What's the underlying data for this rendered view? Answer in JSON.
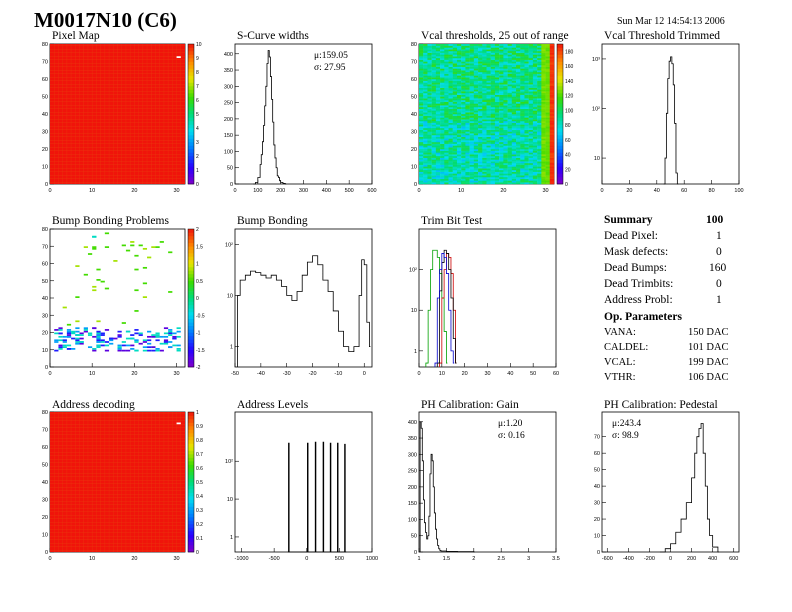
{
  "header": {
    "title": "M0017N10 (C6)",
    "date": "Sun Mar 12 14:54:13 2006"
  },
  "summary": {
    "heading": "Summary",
    "total": "100",
    "rows": [
      {
        "label": "Dead Pixel:",
        "value": "1"
      },
      {
        "label": "Mask defects:",
        "value": "0"
      },
      {
        "label": "Dead Bumps:",
        "value": "160"
      },
      {
        "label": "Dead Trimbits:",
        "value": "0"
      },
      {
        "label": "Address Probl:",
        "value": "1"
      }
    ],
    "op_heading": "Op. Parameters",
    "op_rows": [
      {
        "label": "VANA:",
        "value": "150 DAC"
      },
      {
        "label": "CALDEL:",
        "value": "101 DAC"
      },
      {
        "label": "VCAL:",
        "value": "199 DAC"
      },
      {
        "label": "VTHR:",
        "value": "106 DAC"
      }
    ]
  },
  "chart_data": [
    {
      "id": "pixel-map",
      "type": "heatmap",
      "title": "Pixel Map",
      "xlim": [
        0,
        32
      ],
      "ylim": [
        0,
        80
      ],
      "zlim": [
        0,
        10
      ],
      "xticks": [
        "0",
        "10",
        "20",
        "30"
      ],
      "yticks": [
        "0",
        "10",
        "20",
        "30",
        "40",
        "50",
        "60",
        "70",
        "80"
      ],
      "zticks": [
        "0",
        "1",
        "2",
        "3",
        "4",
        "5",
        "6",
        "7",
        "8",
        "9",
        "10"
      ],
      "fill_value": 10,
      "cells": [
        {
          "x": 30,
          "y": 72,
          "value": 0
        }
      ]
    },
    {
      "id": "scurve-widths",
      "type": "line",
      "title": "S-Curve widths",
      "xlim": [
        0,
        600
      ],
      "ylim": [
        0,
        430
      ],
      "xticks": [
        "0",
        "100",
        "200",
        "300",
        "400",
        "500",
        "600"
      ],
      "yticks": [
        "0",
        "50",
        "100",
        "150",
        "200",
        "250",
        "300",
        "350",
        "400"
      ],
      "stats": [
        "μ:159.05",
        "σ: 27.95"
      ],
      "x": [
        80,
        90,
        100,
        110,
        115,
        120,
        125,
        130,
        135,
        140,
        145,
        150,
        155,
        160,
        165,
        170,
        175,
        180,
        185,
        190,
        195,
        200,
        210,
        220
      ],
      "y": [
        0,
        5,
        20,
        60,
        90,
        130,
        180,
        240,
        300,
        370,
        410,
        390,
        330,
        260,
        190,
        120,
        80,
        50,
        25,
        20,
        10,
        5,
        2,
        0
      ]
    },
    {
      "id": "vcal-thresholds",
      "type": "heatmap",
      "title": "Vcal thresholds, 25 out of range",
      "xlim": [
        0,
        32
      ],
      "ylim": [
        0,
        80
      ],
      "zlim": [
        0,
        190
      ],
      "xticks": [
        "0",
        "10",
        "20",
        "30"
      ],
      "yticks": [
        "0",
        "10",
        "20",
        "30",
        "40",
        "50",
        "60",
        "70",
        "80"
      ],
      "zticks": [
        "0",
        "20",
        "40",
        "60",
        "80",
        "100",
        "120",
        "140",
        "160",
        "180"
      ],
      "base_value": 85,
      "bright_column_x": 29,
      "bright_column_value": 120,
      "right_band_value": 180
    },
    {
      "id": "vcal-threshold-trimmed",
      "type": "line",
      "title": "Vcal Threshold Trimmed",
      "yscale": "log",
      "xlim": [
        0,
        100
      ],
      "ylim": [
        3,
        2000
      ],
      "xticks": [
        "0",
        "20",
        "40",
        "60",
        "80",
        "100"
      ],
      "ytick_values": [
        10,
        100,
        1000
      ],
      "yticks": [
        "10",
        "10²",
        "10³"
      ],
      "x": [
        45,
        46,
        47,
        48,
        49,
        50,
        51,
        52,
        53,
        54,
        55
      ],
      "y": [
        3,
        10,
        80,
        400,
        900,
        1100,
        800,
        300,
        50,
        5,
        3
      ]
    },
    {
      "id": "bump-bonding-problems",
      "type": "scatter",
      "title": "Bump Bonding Problems",
      "xlim": [
        0,
        32
      ],
      "ylim": [
        0,
        80
      ],
      "zlim": [
        -2,
        2
      ],
      "xticks": [
        "0",
        "10",
        "20",
        "30"
      ],
      "yticks": [
        "0",
        "10",
        "20",
        "30",
        "40",
        "50",
        "60",
        "70",
        "80"
      ],
      "zticks": [
        "-2",
        "-1.5",
        "-1",
        "-0.5",
        "0",
        "0.5",
        "1",
        "1.5",
        "2"
      ],
      "clusters": [
        {
          "x0": 1,
          "x1": 31,
          "y0": 9,
          "y1": 23,
          "count": 170,
          "values": [
            -1.8,
            -1.4,
            -0.8,
            -0.3
          ]
        },
        {
          "x0": 2,
          "x1": 30,
          "y0": 24,
          "y1": 78,
          "count": 40,
          "values": [
            0.5,
            0.8
          ]
        },
        {
          "x0": 10,
          "x1": 12,
          "y0": 75,
          "y1": 77,
          "count": 3,
          "values": [
            -0.3
          ]
        }
      ]
    },
    {
      "id": "bump-bonding",
      "type": "line",
      "title": "Bump Bonding",
      "yscale": "log",
      "xlim": [
        -50,
        3
      ],
      "ylim": [
        0.4,
        200
      ],
      "xticks": [
        "-50",
        "-40",
        "-30",
        "-20",
        "-10",
        "0"
      ],
      "ytick_values": [
        1,
        10,
        100
      ],
      "yticks": [
        "1",
        "10",
        "10²"
      ],
      "x": [
        -49,
        -48,
        -46,
        -44,
        -42,
        -40,
        -38,
        -36,
        -34,
        -32,
        -30,
        -28,
        -26,
        -24,
        -22,
        -20,
        -18,
        -16,
        -14,
        -12,
        -10,
        -8,
        -6,
        -4,
        -2,
        -1,
        0,
        1,
        2
      ],
      "y": [
        10,
        20,
        25,
        30,
        28,
        25,
        22,
        25,
        20,
        15,
        10,
        8,
        12,
        25,
        45,
        60,
        40,
        20,
        12,
        5,
        2,
        1,
        0.8,
        1,
        10,
        50,
        40,
        3,
        1
      ]
    },
    {
      "id": "trim-bit-test",
      "type": "line",
      "title": "Trim Bit Test",
      "yscale": "log",
      "xlim": [
        0,
        60
      ],
      "ylim": [
        0.4,
        1000
      ],
      "xticks": [
        "0",
        "10",
        "20",
        "30",
        "40",
        "50",
        "60"
      ],
      "ytick_values": [
        1,
        10,
        100
      ],
      "yticks": [
        "1",
        "10",
        "10²"
      ],
      "series": [
        {
          "color": "#00a000",
          "x": [
            3,
            4,
            5,
            6,
            7,
            8,
            9,
            10,
            11,
            12
          ],
          "y": [
            0.5,
            10,
            100,
            300,
            300,
            200,
            80,
            20,
            3,
            0.5
          ]
        },
        {
          "color": "#cc0000",
          "x": [
            9,
            10,
            11,
            12,
            13,
            14,
            15,
            16
          ],
          "y": [
            0.5,
            20,
            100,
            250,
            200,
            80,
            10,
            0.5
          ]
        },
        {
          "color": "#000000",
          "x": [
            8,
            9,
            10,
            11,
            12,
            13,
            14,
            15,
            16
          ],
          "y": [
            0.5,
            30,
            150,
            300,
            250,
            100,
            20,
            2,
            0.5
          ]
        },
        {
          "color": "#0000cc",
          "x": [
            7,
            8,
            9,
            10,
            11,
            12,
            13,
            14,
            15
          ],
          "y": [
            0.5,
            20,
            100,
            250,
            200,
            80,
            10,
            1,
            0.5
          ]
        }
      ]
    },
    {
      "id": "address-decoding",
      "type": "heatmap",
      "title": "Address decoding",
      "xlim": [
        0,
        32
      ],
      "ylim": [
        0,
        80
      ],
      "zlim": [
        0,
        1
      ],
      "xticks": [
        "0",
        "10",
        "20",
        "30"
      ],
      "yticks": [
        "0",
        "10",
        "20",
        "30",
        "40",
        "50",
        "60",
        "70",
        "80"
      ],
      "zticks": [
        "0",
        "0.1",
        "0.2",
        "0.3",
        "0.4",
        "0.5",
        "0.6",
        "0.7",
        "0.8",
        "0.9",
        "1"
      ],
      "fill_value": 1,
      "cells": [
        {
          "x": 30,
          "y": 73,
          "value": 0
        }
      ]
    },
    {
      "id": "address-levels",
      "type": "line",
      "title": "Address Levels",
      "yscale": "log",
      "xlim": [
        -1100,
        1000
      ],
      "ylim": [
        0.4,
        2000
      ],
      "xticks": [
        "-1000",
        "-500",
        "0",
        "500",
        "1000"
      ],
      "ytick_values": [
        1,
        10,
        100
      ],
      "yticks": [
        "1",
        "10",
        "10²"
      ],
      "x": [
        -290,
        -280,
        -270,
        0,
        10,
        20,
        120,
        130,
        140,
        240,
        250,
        260,
        350,
        360,
        370,
        460,
        470,
        480,
        570,
        580,
        590
      ],
      "y": [
        0.4,
        300,
        0.4,
        0.4,
        300,
        0.4,
        0.4,
        320,
        0.4,
        0.4,
        320,
        0.4,
        0.4,
        300,
        0.4,
        0.4,
        300,
        0.4,
        0.4,
        280,
        0.4
      ]
    },
    {
      "id": "ph-gain",
      "type": "line",
      "title": "PH Calibration: Gain",
      "xlim": [
        1,
        3.5
      ],
      "ylim": [
        0,
        430
      ],
      "xticks": [
        "1",
        "1.5",
        "2",
        "2.5",
        "3",
        "3.5"
      ],
      "yticks": [
        "0",
        "50",
        "100",
        "150",
        "200",
        "250",
        "300",
        "350",
        "400"
      ],
      "stats": [
        "μ:1.20",
        "σ: 0.16"
      ],
      "x": [
        1.02,
        1.04,
        1.06,
        1.08,
        1.1,
        1.12,
        1.14,
        1.16,
        1.18,
        1.2,
        1.22,
        1.24,
        1.26,
        1.28,
        1.3,
        1.32,
        1.34,
        1.36,
        1.38,
        1.4,
        1.5,
        1.7,
        2.0
      ],
      "y": [
        400,
        380,
        280,
        160,
        90,
        60,
        40,
        50,
        110,
        240,
        300,
        280,
        200,
        120,
        70,
        40,
        20,
        10,
        5,
        3,
        2,
        1,
        0
      ]
    },
    {
      "id": "ph-pedestal",
      "type": "line",
      "title": "PH Calibration: Pedestal",
      "xlim": [
        -650,
        650
      ],
      "ylim": [
        0,
        85
      ],
      "xticks": [
        "-600",
        "-400",
        "-200",
        "0",
        "200",
        "400",
        "600"
      ],
      "yticks": [
        "0",
        "10",
        "20",
        "30",
        "40",
        "50",
        "60",
        "70"
      ],
      "stats": [
        "μ:243.4",
        "σ: 98.9"
      ],
      "x": [
        -100,
        -50,
        0,
        50,
        100,
        150,
        200,
        230,
        250,
        270,
        290,
        310,
        330,
        350,
        370,
        400,
        450
      ],
      "y": [
        0,
        2,
        5,
        12,
        20,
        30,
        45,
        60,
        70,
        75,
        78,
        60,
        40,
        20,
        10,
        3,
        0
      ]
    }
  ]
}
